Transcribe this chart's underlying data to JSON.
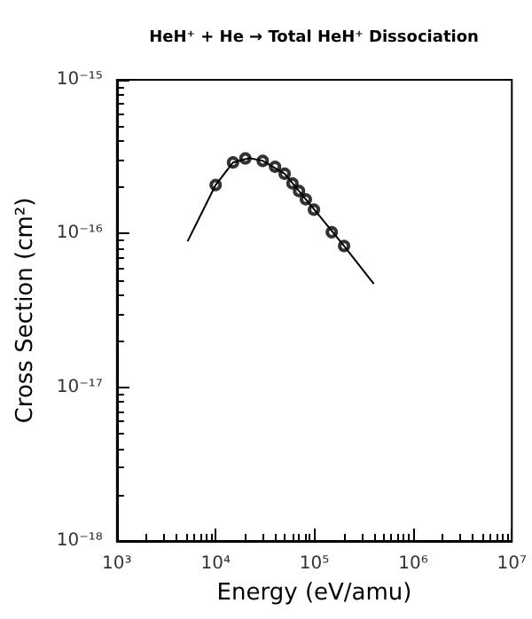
{
  "chart_data": {
    "type": "scatter",
    "title": "HeH⁺ + He → Total HeH⁺ Dissociation",
    "xlabel": "Energy (eV/amu)",
    "ylabel": "Cross Section (cm²)",
    "log": "xy",
    "grid": false,
    "xlim": [
      1000,
      10000000
    ],
    "ylim": [
      1e-18,
      1e-15
    ],
    "xticks": [
      {
        "value": 1000,
        "label": "10³"
      },
      {
        "value": 10000,
        "label": "10⁴"
      },
      {
        "value": 100000,
        "label": "10⁵"
      },
      {
        "value": 1000000,
        "label": "10⁶"
      },
      {
        "value": 10000000,
        "label": "10⁷"
      }
    ],
    "yticks": [
      {
        "value": 1e-18,
        "label": "10⁻¹⁸"
      },
      {
        "value": 1e-17,
        "label": "10⁻¹⁷"
      },
      {
        "value": 1e-16,
        "label": "10⁻¹⁶"
      },
      {
        "value": 1e-15,
        "label": "10⁻¹⁵"
      }
    ],
    "series": [
      {
        "type": "line",
        "color": "#000000",
        "marker": "none",
        "line_style": "solid",
        "x": [
          5200,
          10000,
          15000,
          22000,
          30000,
          50000,
          100000,
          200000,
          400000
        ],
        "values": [
          8.9e-17,
          2.07e-16,
          2.9e-16,
          3.1e-16,
          2.97e-16,
          2.45e-16,
          1.43e-16,
          8.3e-17,
          4.7e-17
        ]
      },
      {
        "color": "#000000",
        "marker": "circle",
        "x": [
          10000,
          15000,
          20000,
          30000,
          40000,
          50000,
          60000,
          70000,
          82000,
          99000,
          150000,
          200000
        ],
        "values": [
          2.07e-16,
          2.9e-16,
          3.08e-16,
          2.97e-16,
          2.72e-16,
          2.45e-16,
          2.12e-16,
          1.89e-16,
          1.67e-16,
          1.43e-16,
          1.02e-16,
          8.3e-17
        ]
      }
    ]
  }
}
